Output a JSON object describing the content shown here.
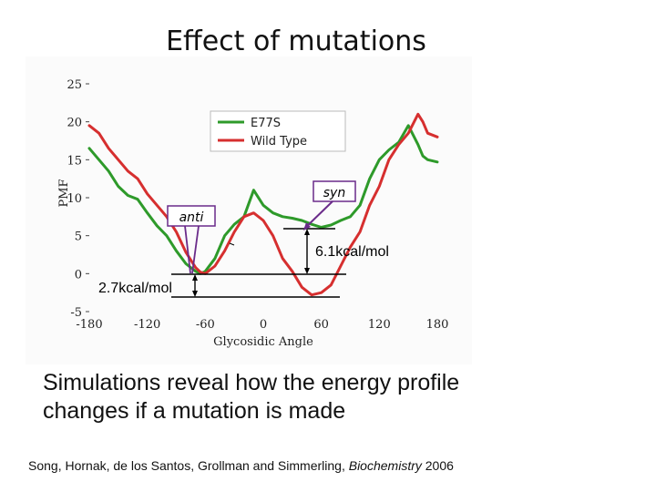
{
  "slide": {
    "title": "Effect of mutations",
    "caption_line1": "Simulations reveal how the energy profile",
    "caption_line2": "changes if a mutation is made",
    "citation_prefix": "Song, Hornak, de los Santos, Grollman and Simmerling, ",
    "citation_journal": "Biochemistry",
    "citation_year": " 2006"
  },
  "chart_data": {
    "type": "line",
    "xlabel": "Glycosidic Angle",
    "ylabel": "PMF",
    "xlim": [
      -180,
      180
    ],
    "ylim": [
      -5,
      25
    ],
    "xticks": [
      -180,
      -120,
      -60,
      0,
      60,
      120,
      180
    ],
    "yticks": [
      -5,
      0,
      5,
      10,
      15,
      20,
      25
    ],
    "grid": false,
    "legend_position": "top-center",
    "series": [
      {
        "name": "E77S",
        "color": "#2e9a2a",
        "x": [
          -180,
          -170,
          -160,
          -150,
          -140,
          -130,
          -120,
          -110,
          -100,
          -90,
          -80,
          -70,
          -65,
          -60,
          -50,
          -40,
          -30,
          -20,
          -10,
          0,
          10,
          20,
          30,
          40,
          50,
          60,
          70,
          80,
          90,
          100,
          110,
          120,
          130,
          140,
          150,
          160,
          165,
          170,
          180
        ],
        "y": [
          16.5,
          15,
          13.5,
          11.5,
          10.3,
          9.8,
          8,
          6.3,
          5,
          3,
          1.3,
          0.3,
          0,
          0.3,
          2,
          5,
          6.5,
          7.5,
          11,
          9,
          8,
          7.5,
          7.3,
          7,
          6.5,
          6.1,
          6.4,
          7,
          7.5,
          9,
          12.5,
          15,
          16.3,
          17.3,
          19.5,
          17,
          15.5,
          15,
          14.7
        ]
      },
      {
        "name": "Wild Type",
        "color": "#d62f2f",
        "x": [
          -180,
          -170,
          -160,
          -150,
          -140,
          -130,
          -120,
          -110,
          -100,
          -90,
          -80,
          -70,
          -65,
          -60,
          -50,
          -40,
          -30,
          -20,
          -10,
          0,
          10,
          20,
          30,
          40,
          50,
          60,
          70,
          80,
          90,
          100,
          110,
          120,
          130,
          140,
          150,
          160,
          165,
          170,
          180
        ],
        "y": [
          19.5,
          18.5,
          16.5,
          15,
          13.5,
          12.5,
          10.5,
          9,
          7.5,
          5.5,
          2.8,
          0.8,
          0.2,
          0,
          1,
          3,
          5.5,
          7.5,
          8,
          7,
          5,
          2,
          0.3,
          -1.8,
          -2.8,
          -2.5,
          -1.5,
          1,
          3.5,
          5.5,
          9,
          11.5,
          15,
          17,
          18.5,
          21,
          20,
          18.5,
          18
        ]
      }
    ],
    "annotations": {
      "anti_label": "anti",
      "syn_label": "syn",
      "barrier_low": "2.7kcal/mol",
      "barrier_high": "6.1kcal/mol"
    }
  }
}
